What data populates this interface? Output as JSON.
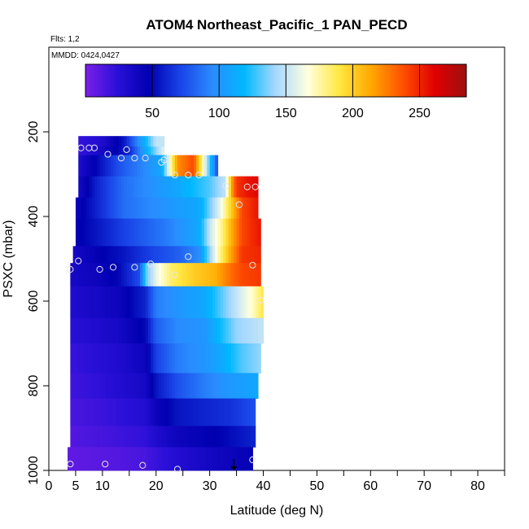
{
  "chart_data": {
    "type": "heatmap",
    "title": "ATOM4 Northeast_Pacific_1 PAN_PECD",
    "flights_note": "Flts: 1,2",
    "dates_note": "MMDD: 0424,0427",
    "xlabel": "Latitude (deg N)",
    "ylabel": "PSXC (mbar)",
    "xlim": [
      0,
      85
    ],
    "ylim": [
      1000,
      0
    ],
    "x_tick_labels": [
      "0",
      "5",
      "10",
      "20",
      "30",
      "40",
      "50",
      "60",
      "70",
      "80"
    ],
    "x_ticks": [
      0,
      5,
      10,
      20,
      30,
      40,
      50,
      60,
      70,
      80
    ],
    "y_tick_labels": [
      "200",
      "400",
      "600",
      "800",
      "1000"
    ],
    "y_ticks": [
      200,
      400,
      600,
      800,
      1000
    ],
    "colorbar": {
      "min": 0,
      "max": 285,
      "tick_labels": [
        "50",
        "100",
        "150",
        "200",
        "250"
      ],
      "ticks": [
        50,
        100,
        150,
        200,
        250
      ]
    },
    "colormap": [
      "#7b1fe8",
      "#2a10d8",
      "#0000b0",
      "#1a44e8",
      "#2a8cff",
      "#00b8ff",
      "#a8d8ff",
      "#ffffe0",
      "#ffe840",
      "#ffa800",
      "#ff5000",
      "#e00000",
      "#9e1010"
    ],
    "rows": [
      {
        "p": [
          210,
          235
        ],
        "x": [
          5.5,
          21.5
        ],
        "segs": [
          [
            5.5,
            20
          ],
          [
            10,
            30
          ],
          [
            14,
            55
          ],
          [
            17,
            100
          ],
          [
            20,
            150
          ],
          [
            21.5,
            150
          ]
        ]
      },
      {
        "p": [
          235,
          255
        ],
        "x": [
          5.5,
          21.5
        ],
        "segs": [
          [
            5.5,
            20
          ],
          [
            10,
            35
          ],
          [
            15,
            60
          ],
          [
            18,
            110
          ],
          [
            21.5,
            160
          ]
        ]
      },
      {
        "p": [
          255,
          305
        ],
        "x": [
          5.5,
          31.5
        ],
        "segs": [
          [
            5.5,
            30
          ],
          [
            9,
            50
          ],
          [
            13,
            75
          ],
          [
            18,
            95
          ],
          [
            21,
            110
          ],
          [
            24,
            220
          ],
          [
            27,
            240
          ],
          [
            31.5,
            70
          ]
        ]
      },
      {
        "p": [
          305,
          355
        ],
        "x": [
          5.5,
          39
        ],
        "segs": [
          [
            5.5,
            35
          ],
          [
            9,
            60
          ],
          [
            14,
            85
          ],
          [
            20,
            100
          ],
          [
            24,
            110
          ],
          [
            30,
            130
          ],
          [
            33,
            150
          ],
          [
            34,
            210
          ],
          [
            35,
            245
          ],
          [
            37,
            255
          ],
          [
            39,
            260
          ]
        ]
      },
      {
        "p": [
          355,
          405
        ],
        "x": [
          5,
          39
        ],
        "segs": [
          [
            5,
            40
          ],
          [
            9,
            60
          ],
          [
            14,
            85
          ],
          [
            22,
            100
          ],
          [
            28,
            110
          ],
          [
            30,
            135
          ],
          [
            32,
            160
          ],
          [
            34,
            200
          ],
          [
            36,
            240
          ],
          [
            39,
            255
          ]
        ]
      },
      {
        "p": [
          405,
          470
        ],
        "x": [
          5,
          39.5
        ],
        "segs": [
          [
            5,
            45
          ],
          [
            9,
            55
          ],
          [
            14,
            70
          ],
          [
            22,
            90
          ],
          [
            28,
            110
          ],
          [
            30,
            150
          ],
          [
            32,
            175
          ],
          [
            34,
            210
          ],
          [
            36,
            240
          ],
          [
            39.5,
            255
          ]
        ]
      },
      {
        "p": [
          470,
          510
        ],
        "x": [
          4.5,
          39.5
        ],
        "segs": [
          [
            4.5,
            35
          ],
          [
            9,
            45
          ],
          [
            14,
            55
          ],
          [
            19,
            70
          ],
          [
            24,
            80
          ],
          [
            28,
            95
          ],
          [
            30,
            140
          ],
          [
            32,
            180
          ],
          [
            34,
            215
          ],
          [
            36,
            245
          ],
          [
            39.5,
            250
          ]
        ]
      },
      {
        "p": [
          510,
          565
        ],
        "x": [
          4,
          39.5
        ],
        "segs": [
          [
            4,
            35
          ],
          [
            9,
            40
          ],
          [
            13,
            50
          ],
          [
            17,
            75
          ],
          [
            18,
            130
          ],
          [
            20,
            160
          ],
          [
            23,
            185
          ],
          [
            27,
            200
          ],
          [
            31,
            210
          ],
          [
            34,
            230
          ],
          [
            36,
            240
          ],
          [
            39.5,
            245
          ]
        ]
      },
      {
        "p": [
          565,
          640
        ],
        "x": [
          4,
          40
        ],
        "segs": [
          [
            4,
            30
          ],
          [
            9,
            35
          ],
          [
            13,
            40
          ],
          [
            18,
            60
          ],
          [
            20,
            90
          ],
          [
            24,
            100
          ],
          [
            29,
            110
          ],
          [
            32,
            130
          ],
          [
            35,
            150
          ],
          [
            38,
            170
          ],
          [
            40,
            190
          ]
        ]
      },
      {
        "p": [
          640,
          700
        ],
        "x": [
          4,
          40
        ],
        "segs": [
          [
            4,
            25
          ],
          [
            9,
            30
          ],
          [
            13,
            35
          ],
          [
            18,
            50
          ],
          [
            20,
            80
          ],
          [
            24,
            95
          ],
          [
            29,
            100
          ],
          [
            32,
            120
          ],
          [
            35,
            140
          ],
          [
            40,
            150
          ]
        ]
      },
      {
        "p": [
          700,
          770
        ],
        "x": [
          4,
          39.5
        ],
        "segs": [
          [
            4,
            20
          ],
          [
            9,
            25
          ],
          [
            13,
            30
          ],
          [
            18,
            40
          ],
          [
            20,
            70
          ],
          [
            24,
            90
          ],
          [
            29,
            100
          ],
          [
            32,
            110
          ],
          [
            36,
            130
          ],
          [
            39.5,
            140
          ]
        ]
      },
      {
        "p": [
          770,
          830
        ],
        "x": [
          4,
          39
        ],
        "segs": [
          [
            4,
            18
          ],
          [
            9,
            22
          ],
          [
            13,
            28
          ],
          [
            18,
            35
          ],
          [
            20,
            55
          ],
          [
            24,
            75
          ],
          [
            29,
            90
          ],
          [
            33,
            100
          ],
          [
            39,
            110
          ]
        ]
      },
      {
        "p": [
          830,
          895
        ],
        "x": [
          4,
          38.5
        ],
        "segs": [
          [
            4,
            15
          ],
          [
            9,
            18
          ],
          [
            13,
            22
          ],
          [
            18,
            28
          ],
          [
            20,
            40
          ],
          [
            24,
            55
          ],
          [
            29,
            60
          ],
          [
            34,
            65
          ],
          [
            38.5,
            75
          ]
        ]
      },
      {
        "p": [
          895,
          945
        ],
        "x": [
          4,
          38.5
        ],
        "segs": [
          [
            4,
            12
          ],
          [
            9,
            15
          ],
          [
            13,
            18
          ],
          [
            18,
            22
          ],
          [
            20,
            30
          ],
          [
            24,
            40
          ],
          [
            29,
            45
          ],
          [
            33,
            50
          ],
          [
            38.5,
            60
          ]
        ]
      },
      {
        "p": [
          945,
          1000
        ],
        "x": [
          3.5,
          38
        ],
        "segs": [
          [
            3.5,
            8
          ],
          [
            9,
            10
          ],
          [
            13,
            12
          ],
          [
            18,
            15
          ],
          [
            20,
            20
          ],
          [
            24,
            28
          ],
          [
            29,
            35
          ],
          [
            33,
            40
          ],
          [
            38,
            45
          ]
        ]
      }
    ],
    "points": [
      [
        6,
        238
      ],
      [
        7.5,
        238
      ],
      [
        8.5,
        238
      ],
      [
        11,
        253
      ],
      [
        13.5,
        262
      ],
      [
        14.5,
        242
      ],
      [
        16,
        262
      ],
      [
        18,
        262
      ],
      [
        21,
        272
      ],
      [
        21.5,
        266
      ],
      [
        23.5,
        302
      ],
      [
        26,
        302
      ],
      [
        28,
        302
      ],
      [
        33,
        328
      ],
      [
        35.5,
        372
      ],
      [
        37,
        330
      ],
      [
        38.5,
        330
      ],
      [
        4,
        525
      ],
      [
        5.5,
        505
      ],
      [
        9.5,
        525
      ],
      [
        12,
        520
      ],
      [
        16,
        520
      ],
      [
        19,
        512
      ],
      [
        23.5,
        538
      ],
      [
        26,
        495
      ],
      [
        38,
        515
      ],
      [
        39.5,
        598
      ],
      [
        4,
        985
      ],
      [
        10.5,
        985
      ],
      [
        17.5,
        988
      ],
      [
        24,
        997
      ],
      [
        38,
        975
      ]
    ],
    "marker": [
      34.5,
      1000
    ]
  }
}
